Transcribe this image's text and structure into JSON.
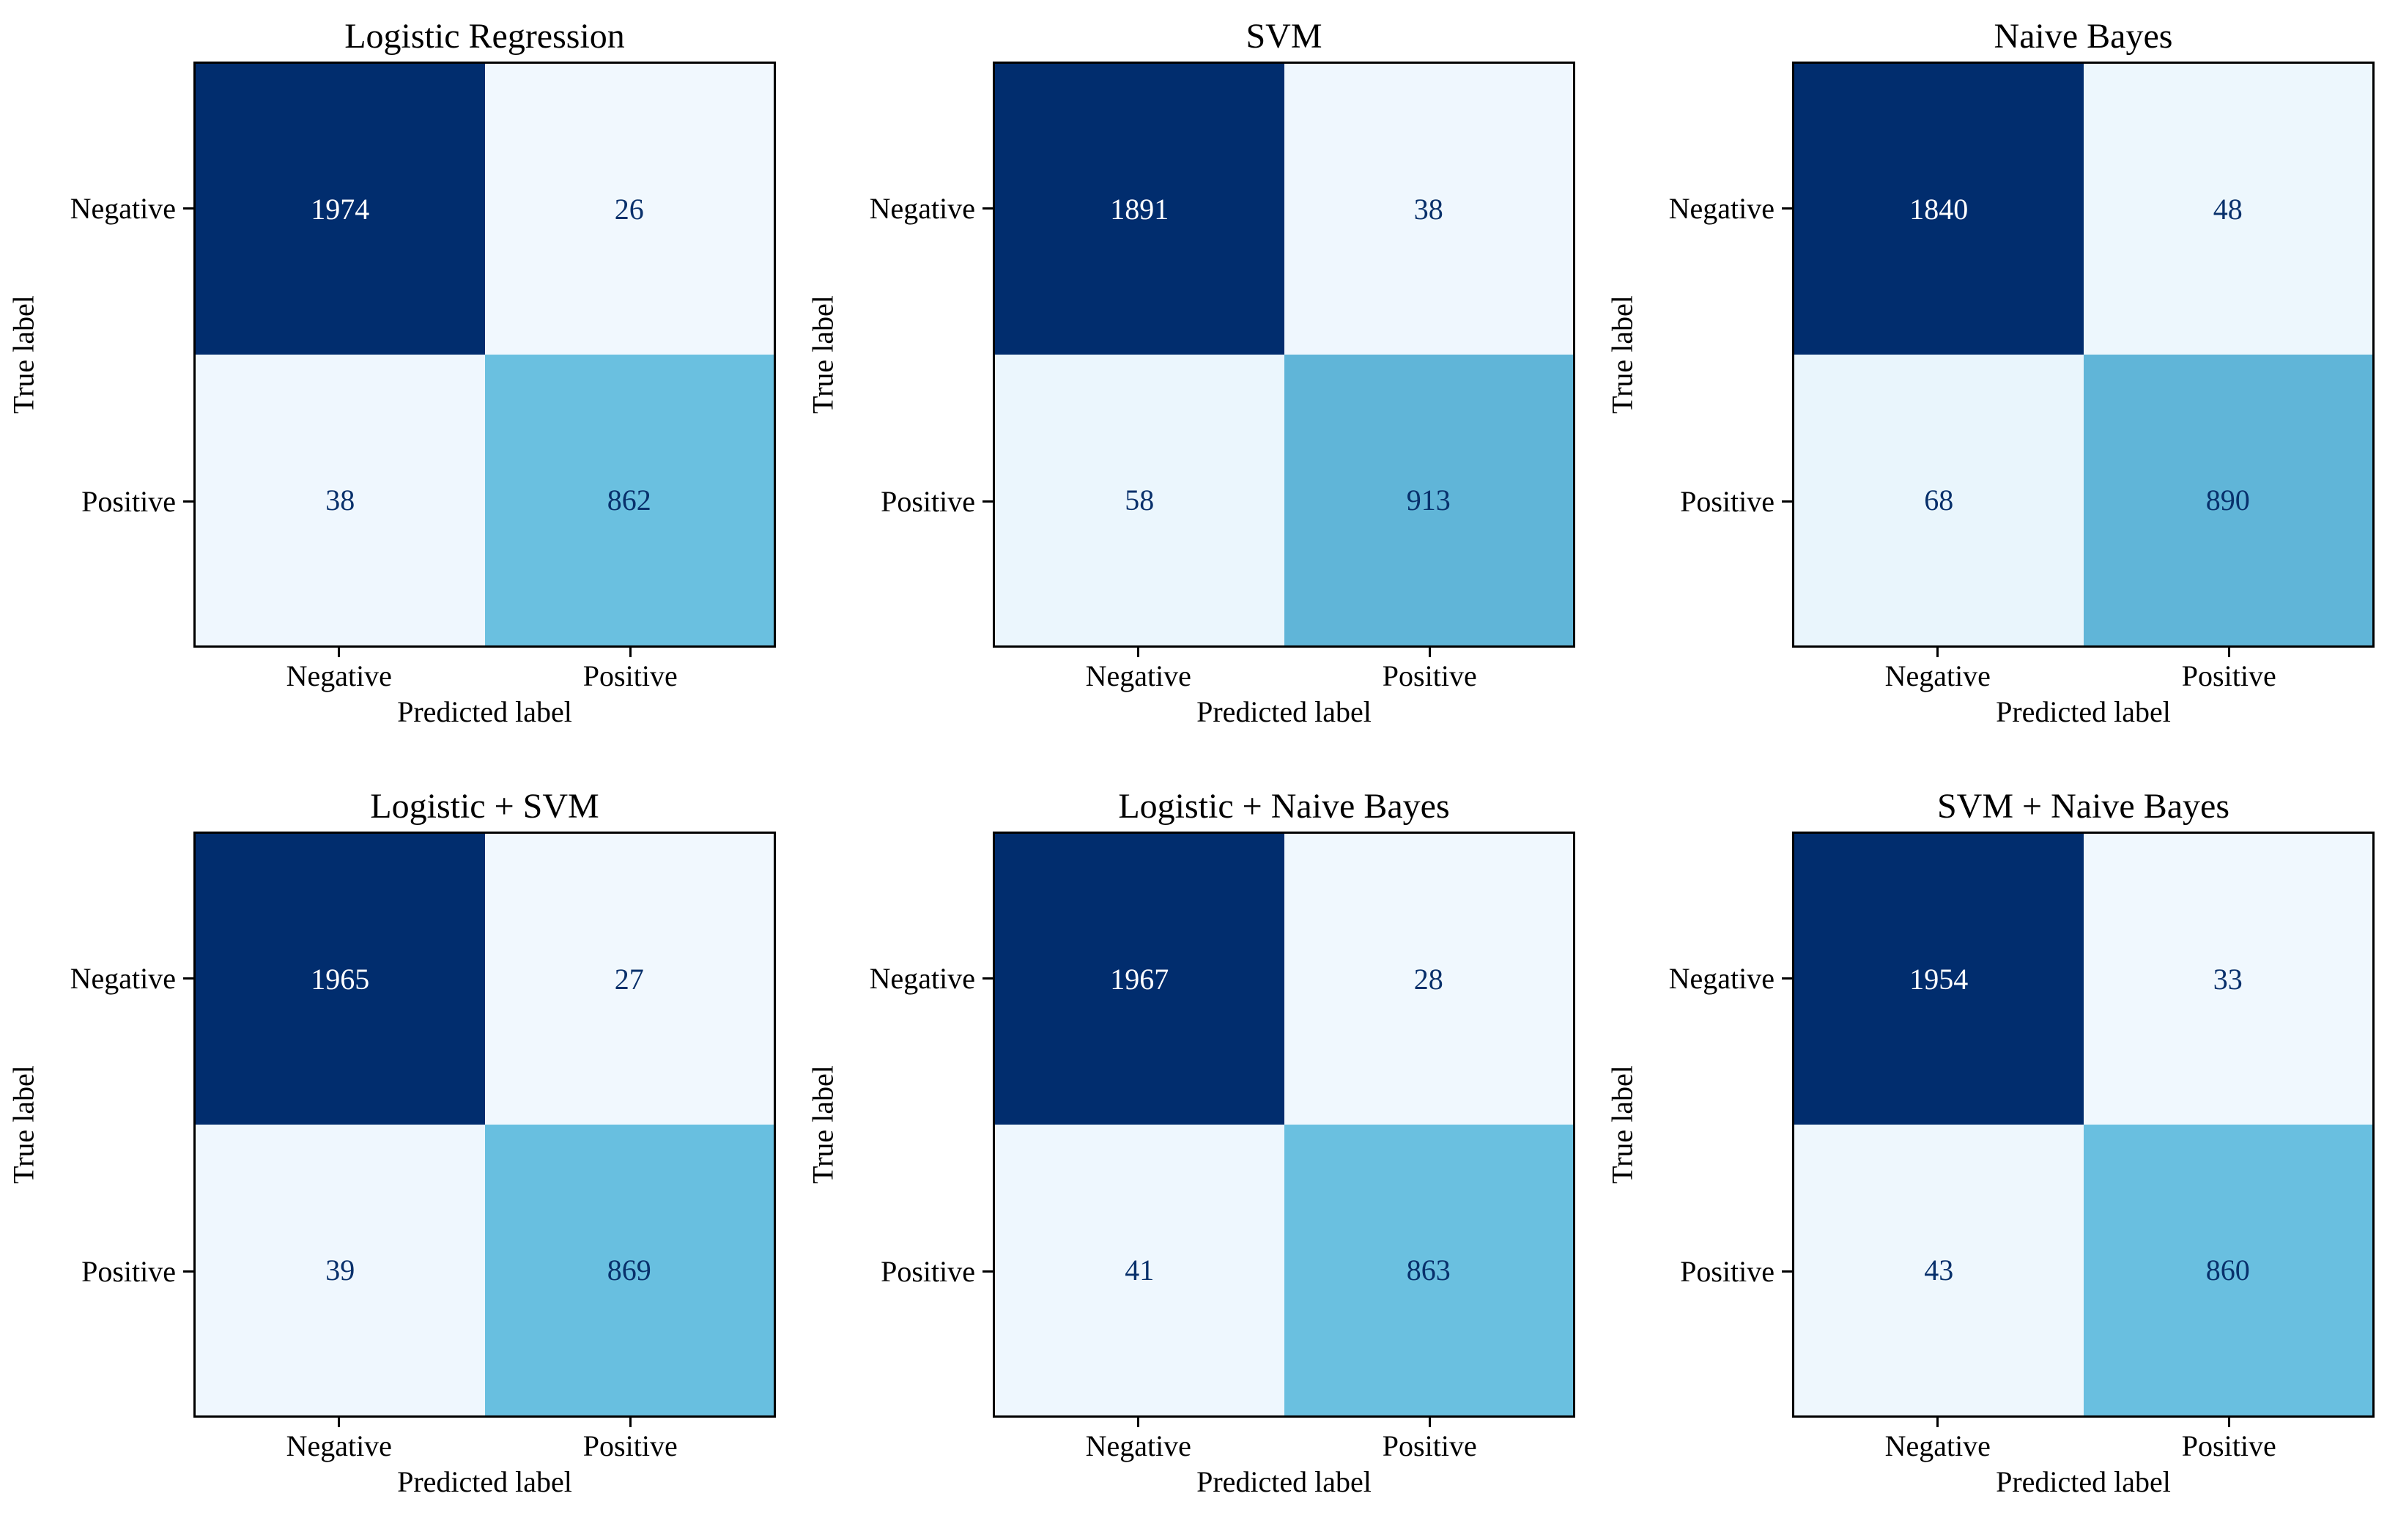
{
  "figure": {
    "background": "#ffffff",
    "rows": 2,
    "cols": 3
  },
  "colors": {
    "cmap_low": "#f5faff",
    "cmap_mid": "#66bedf",
    "cmap_high": "#012d6e",
    "cmap_mid_anchor": 0.45,
    "cell_text_on_dark": "#ffffff",
    "cell_text_on_light": "#08306b",
    "axis_color": "#000000",
    "label_color": "#000000"
  },
  "axis": {
    "xlabel": "Predicted label",
    "ylabel": "True label",
    "classes": [
      "Negative",
      "Positive"
    ]
  },
  "chart_data": [
    {
      "type": "heatmap",
      "title": "Logistic Regression",
      "categories": [
        "Negative",
        "Positive"
      ],
      "xlabel": "Predicted label",
      "ylabel": "True label",
      "matrix": [
        [
          1974,
          26
        ],
        [
          38,
          862
        ]
      ]
    },
    {
      "type": "heatmap",
      "title": "SVM",
      "categories": [
        "Negative",
        "Positive"
      ],
      "xlabel": "Predicted label",
      "ylabel": "True label",
      "matrix": [
        [
          1891,
          38
        ],
        [
          58,
          913
        ]
      ]
    },
    {
      "type": "heatmap",
      "title": "Naive Bayes",
      "categories": [
        "Negative",
        "Positive"
      ],
      "xlabel": "Predicted label",
      "ylabel": "True label",
      "matrix": [
        [
          1840,
          48
        ],
        [
          68,
          890
        ]
      ]
    },
    {
      "type": "heatmap",
      "title": "Logistic + SVM",
      "categories": [
        "Negative",
        "Positive"
      ],
      "xlabel": "Predicted label",
      "ylabel": "True label",
      "matrix": [
        [
          1965,
          27
        ],
        [
          39,
          869
        ]
      ]
    },
    {
      "type": "heatmap",
      "title": "Logistic + Naive Bayes",
      "categories": [
        "Negative",
        "Positive"
      ],
      "xlabel": "Predicted label",
      "ylabel": "True label",
      "matrix": [
        [
          1967,
          28
        ],
        [
          41,
          863
        ]
      ]
    },
    {
      "type": "heatmap",
      "title": "SVM + Naive Bayes",
      "categories": [
        "Negative",
        "Positive"
      ],
      "xlabel": "Predicted label",
      "ylabel": "True label",
      "matrix": [
        [
          1954,
          33
        ],
        [
          43,
          860
        ]
      ]
    }
  ]
}
